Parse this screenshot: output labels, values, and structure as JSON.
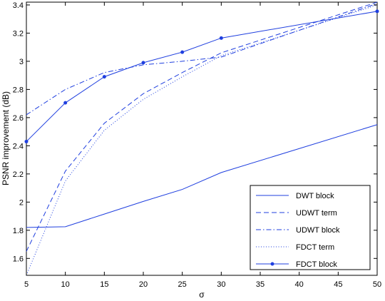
{
  "chart_data": {
    "type": "line",
    "title": "",
    "xlabel": "σ",
    "ylabel": "PSNR improvement (dB)",
    "xlim": [
      5,
      50
    ],
    "ylim": [
      1.48,
      3.42
    ],
    "xticks": [
      5,
      10,
      15,
      20,
      25,
      30,
      35,
      40,
      45,
      50
    ],
    "yticks": [
      1.6,
      1.8,
      2,
      2.2,
      2.4,
      2.6,
      2.8,
      3,
      3.2,
      3.4
    ],
    "xtick_labels": [
      "5",
      "10",
      "15",
      "20",
      "25",
      "30",
      "35",
      "40",
      "45",
      "50"
    ],
    "ytick_labels": [
      "1.6",
      "1.8",
      "2",
      "2.2",
      "2.4",
      "2.6",
      "2.8",
      "3",
      "3.2",
      "3.4"
    ],
    "grid": false,
    "legend_position": "bottom-right",
    "color": "#1f3fdf",
    "x": [
      5,
      10,
      15,
      20,
      25,
      30,
      50
    ],
    "series": [
      {
        "name": "DWT block",
        "dash": "solid",
        "marker": "none",
        "values": [
          1.82,
          1.825,
          1.915,
          2.005,
          2.09,
          2.21,
          2.55
        ]
      },
      {
        "name": "UDWT term",
        "dash": "dashed",
        "marker": "none",
        "values": [
          1.65,
          2.22,
          2.56,
          2.77,
          2.92,
          3.06,
          3.42
        ]
      },
      {
        "name": "UDWT block",
        "dash": "dashdot",
        "marker": "none",
        "values": [
          2.62,
          2.8,
          2.92,
          2.975,
          3.0,
          3.03,
          3.41
        ]
      },
      {
        "name": "FDCT term",
        "dash": "dotted",
        "marker": "none",
        "values": [
          1.48,
          2.15,
          2.51,
          2.73,
          2.89,
          3.04,
          3.4
        ]
      },
      {
        "name": "FDCT block",
        "dash": "solid",
        "marker": "dot",
        "values": [
          2.43,
          2.705,
          2.89,
          2.99,
          3.065,
          3.165,
          3.355
        ]
      }
    ]
  }
}
